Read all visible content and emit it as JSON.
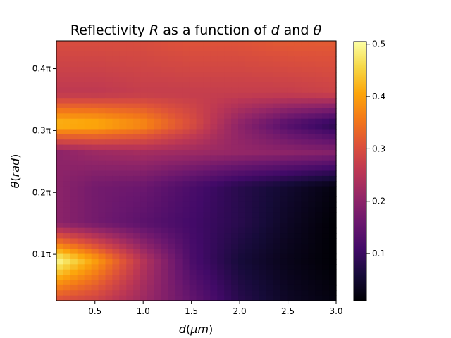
{
  "chart_data": {
    "type": "heatmap",
    "title_parts": [
      "Reflectivity ",
      "R",
      " as a function of ",
      "d",
      " and ",
      "θ"
    ],
    "xlabel_parts": [
      "d",
      "(",
      "μm",
      ")"
    ],
    "ylabel_parts": [
      "θ",
      "(",
      "rad",
      ")"
    ],
    "xlim": [
      0.1,
      3.0
    ],
    "ylim_pi": [
      0.025,
      0.445
    ],
    "xticks": [
      {
        "value": 0.5,
        "label": "0.5"
      },
      {
        "value": 1.0,
        "label": "1.0"
      },
      {
        "value": 1.5,
        "label": "1.5"
      },
      {
        "value": 2.0,
        "label": "2.0"
      },
      {
        "value": 2.5,
        "label": "2.5"
      },
      {
        "value": 3.0,
        "label": "3.0"
      }
    ],
    "yticks": [
      {
        "value_pi": 0.1,
        "label": "0.1π"
      },
      {
        "value_pi": 0.2,
        "label": "0.2π"
      },
      {
        "value_pi": 0.3,
        "label": "0.3π"
      },
      {
        "value_pi": 0.4,
        "label": "0.4π"
      }
    ],
    "colorbar": {
      "min": 0.01,
      "max": 0.505,
      "ticks": [
        {
          "value": 0.1,
          "label": "0.1"
        },
        {
          "value": 0.2,
          "label": "0.2"
        },
        {
          "value": 0.3,
          "label": "0.3"
        },
        {
          "value": 0.4,
          "label": "0.4"
        },
        {
          "value": 0.5,
          "label": "0.5"
        }
      ]
    },
    "colormap": "inferno",
    "grid": false,
    "theta_pi_rows": [
      0.09,
      0.15,
      0.21,
      0.265,
      0.31,
      0.36,
      0.41
    ],
    "profiles": [
      {
        "d": [
          0.1,
          0.5,
          1.0,
          1.5,
          2.0,
          2.5,
          3.0
        ],
        "R": [
          0.3,
          0.28,
          0.22,
          0.15,
          0.08,
          0.04,
          0.02
        ]
      },
      {
        "d": [
          0.1,
          0.5,
          1.0,
          1.5,
          2.0,
          2.5,
          3.0
        ],
        "R": [
          0.5,
          0.4,
          0.25,
          0.12,
          0.06,
          0.03,
          0.01
        ]
      },
      {
        "d": [
          0.1,
          0.5,
          1.0,
          1.5,
          2.0,
          2.5,
          3.0
        ],
        "R": [
          0.2,
          0.17,
          0.14,
          0.11,
          0.08,
          0.04,
          0.01
        ]
      },
      {
        "d": [
          0.1,
          0.5,
          1.0,
          1.5,
          2.0,
          2.5,
          3.0
        ],
        "R": [
          0.2,
          0.17,
          0.16,
          0.12,
          0.08,
          0.05,
          0.02
        ]
      },
      {
        "d": [
          0.1,
          0.5,
          1.0,
          1.5,
          2.0,
          2.5,
          3.0
        ],
        "R": [
          0.43,
          0.42,
          0.38,
          0.3,
          0.2,
          0.13,
          0.08
        ]
      },
      {
        "d": [
          0.1,
          0.5,
          1.0,
          1.5,
          2.0,
          2.5,
          3.0
        ],
        "R": [
          0.2,
          0.22,
          0.23,
          0.22,
          0.21,
          0.2,
          0.19
        ]
      },
      {
        "d": [
          0.1,
          0.5,
          1.0,
          1.5,
          2.0,
          2.5,
          3.0
        ],
        "R": [
          0.26,
          0.26,
          0.27,
          0.27,
          0.27,
          0.27,
          0.28
        ]
      },
      {
        "d": [
          0.1,
          0.5,
          1.0,
          1.5,
          2.0,
          2.5,
          3.0
        ],
        "R": [
          0.3,
          0.3,
          0.3,
          0.31,
          0.31,
          0.32,
          0.32
        ]
      }
    ],
    "profiles_theta_pi": [
      0.025,
      0.09,
      0.15,
      0.21,
      0.31,
      0.265,
      0.36,
      0.445
    ]
  }
}
